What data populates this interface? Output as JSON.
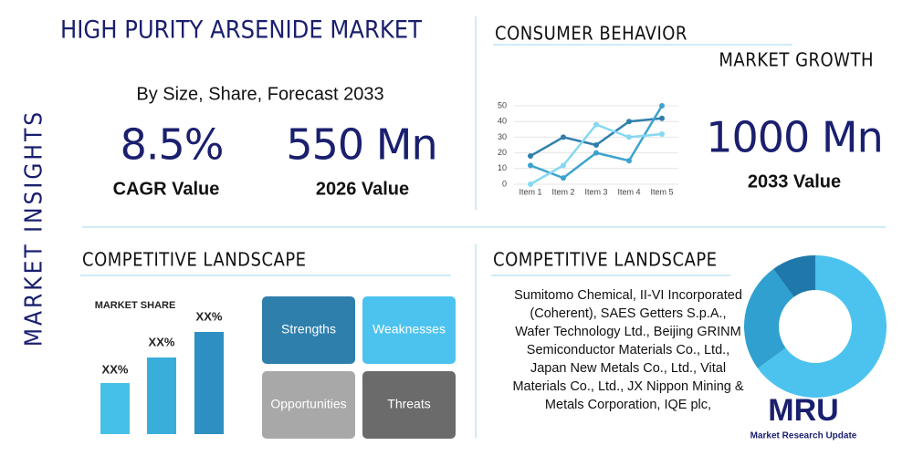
{
  "title": "HIGH PURITY ARSENIDE MARKET",
  "side_label": "MARKET INSIGHTS",
  "subtitle": "By Size, Share, Forecast 2033",
  "stats": [
    {
      "value": "8.5%",
      "label": "CAGR Value"
    },
    {
      "value": "550 Mn",
      "label": "2026 Value"
    },
    {
      "value": "1000 Mn",
      "label": "2033 Value"
    }
  ],
  "consumer_title": "CONSUMER BEHAVIOR",
  "growth_title": "MARKET GROWTH",
  "line_chart": {
    "type": "line",
    "categories": [
      "Item 1",
      "Item 2",
      "Item 3",
      "Item 4",
      "Item 5"
    ],
    "ylim": [
      0,
      50
    ],
    "yticks": [
      0,
      10,
      20,
      30,
      40,
      50
    ],
    "series": [
      {
        "color": "#2f7fad",
        "values": [
          18,
          30,
          25,
          40,
          42
        ]
      },
      {
        "color": "#3ba3cf",
        "values": [
          12,
          4,
          20,
          15,
          50
        ]
      },
      {
        "color": "#86d8f2",
        "values": [
          0,
          12,
          38,
          30,
          32
        ]
      }
    ]
  },
  "landscape_left_title": "COMPETITIVE LANDSCAPE",
  "market_share": {
    "title": "MARKET SHARE",
    "labels": [
      "XX%",
      "XX%",
      "XX%"
    ]
  },
  "swot": [
    "Strengths",
    "Weaknesses",
    "Opportunities",
    "Threats"
  ],
  "landscape_right_title": "COMPETITIVE LANDSCAPE",
  "companies": "Sumitomo Chemical, II-VI Incorporated (Coherent), SAES Getters S.p.A., Wafer Technology Ltd., Beijing GRINM Semiconductor Materials Co., Ltd., Japan New Metals Co., Ltd., Vital Materials Co., Ltd., JX Nippon Mining & Metals Corporation, IQE plc,",
  "donut": {
    "type": "pie",
    "values": [
      65,
      25,
      10
    ],
    "colors": [
      "#4cc3ee",
      "#2fa0cf",
      "#1f78aa"
    ]
  },
  "logo": {
    "name": "MRU",
    "tagline": "Market Research Update"
  }
}
